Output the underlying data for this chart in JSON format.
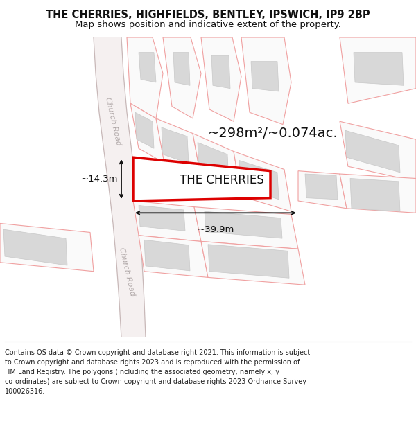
{
  "title_line1": "THE CHERRIES, HIGHFIELDS, BENTLEY, IPSWICH, IP9 2BP",
  "title_line2": "Map shows position and indicative extent of the property.",
  "figure_bg": "#ffffff",
  "map_bg": "#ffffff",
  "plot_edge": "#f0a0a0",
  "building_fill": "#d8d8d8",
  "building_edge": "#c8c8c8",
  "road_fill": "#f5f0f0",
  "road_edge": "#c8b8b8",
  "highlight_edge": "#dd0000",
  "road_label_color": "#b0a8a8",
  "dim_color": "#111111",
  "label_color": "#111111",
  "property_label": "THE CHERRIES",
  "area_label": "~298m²/~0.074ac.",
  "dim_width_label": "~39.9m",
  "dim_height_label": "~14.3m",
  "church_road_label": "Church Road",
  "footer": "Contains OS data © Crown copyright and database right 2021. This information is subject\nto Crown copyright and database rights 2023 and is reproduced with the permission of\nHM Land Registry. The polygons (including the associated geometry, namely x, y\nco-ordinates) are subject to Crown copyright and database rights 2023 Ordnance Survey\n100026316.",
  "title_fontsize": 10.5,
  "subtitle_fontsize": 9.5,
  "footer_fontsize": 7.0,
  "area_fontsize": 14,
  "property_fontsize": 12,
  "dim_fontsize": 9.5
}
